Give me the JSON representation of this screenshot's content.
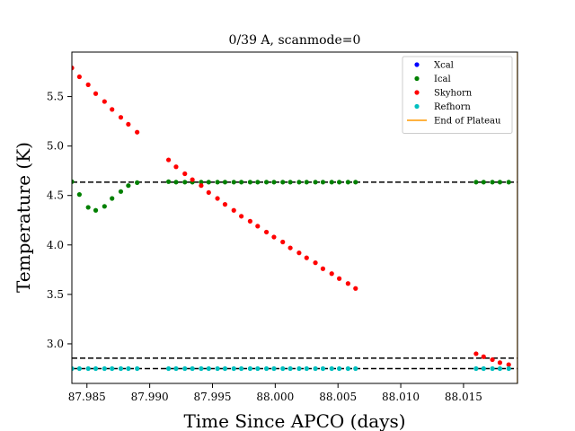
{
  "chart_data": {
    "type": "scatter",
    "title": "0/39 A, scanmode=0",
    "xlabel": "Time Since APCO (days)",
    "ylabel": "Temperature (K)",
    "xlim": [
      87.9838,
      88.0193
    ],
    "ylim": [
      2.6,
      5.95
    ],
    "x_ticks": [
      87.985,
      87.99,
      87.995,
      88.0,
      88.005,
      88.01,
      88.015
    ],
    "x_tick_labels": [
      "87.985",
      "87.990",
      "87.995",
      "88.000",
      "88.005",
      "88.010",
      "88.015"
    ],
    "y_ticks": [
      3.0,
      3.5,
      4.0,
      4.5,
      5.0,
      5.5
    ],
    "y_tick_labels": [
      "3.0",
      "3.5",
      "4.0",
      "4.5",
      "5.0",
      "5.5"
    ],
    "legend_position": "top-right",
    "reference_lines": [
      {
        "type": "hline",
        "y": 4.635,
        "style": "dashed",
        "color": "#000000"
      },
      {
        "type": "hline",
        "y": 2.855,
        "style": "dashed",
        "color": "#000000"
      },
      {
        "type": "hline",
        "y": 2.75,
        "style": "dashed",
        "color": "#000000"
      },
      {
        "type": "vline",
        "x": 88.0193,
        "style": "solid",
        "color": "#ff9900",
        "name": "End of Plateau"
      }
    ],
    "series": [
      {
        "name": "Xcal",
        "color": "#0000ff",
        "points": []
      },
      {
        "name": "Ical",
        "color": "#008000",
        "points": [
          [
            87.9838,
            4.64
          ],
          [
            87.9844,
            4.51
          ],
          [
            87.9851,
            4.38
          ],
          [
            87.9857,
            4.35
          ],
          [
            87.9864,
            4.39
          ],
          [
            87.987,
            4.47
          ],
          [
            87.9877,
            4.54
          ],
          [
            87.9883,
            4.6
          ],
          [
            87.989,
            4.63
          ],
          [
            87.9915,
            4.64
          ],
          [
            87.9921,
            4.635
          ],
          [
            87.9928,
            4.635
          ],
          [
            87.9934,
            4.635
          ],
          [
            87.9941,
            4.635
          ],
          [
            87.9947,
            4.635
          ],
          [
            87.9954,
            4.635
          ],
          [
            87.996,
            4.635
          ],
          [
            87.9967,
            4.635
          ],
          [
            87.9973,
            4.635
          ],
          [
            87.998,
            4.635
          ],
          [
            87.9986,
            4.635
          ],
          [
            87.9993,
            4.635
          ],
          [
            87.9999,
            4.635
          ],
          [
            88.0006,
            4.635
          ],
          [
            88.0012,
            4.635
          ],
          [
            88.0019,
            4.635
          ],
          [
            88.0025,
            4.635
          ],
          [
            88.0032,
            4.635
          ],
          [
            88.0038,
            4.635
          ],
          [
            88.0045,
            4.635
          ],
          [
            88.0051,
            4.635
          ],
          [
            88.0058,
            4.635
          ],
          [
            88.0064,
            4.635
          ],
          [
            88.016,
            4.635
          ],
          [
            88.0166,
            4.635
          ],
          [
            88.0173,
            4.635
          ],
          [
            88.0179,
            4.635
          ],
          [
            88.0186,
            4.635
          ]
        ]
      },
      {
        "name": "Skyhorn",
        "color": "#ff0000",
        "points": [
          [
            87.9838,
            5.79
          ],
          [
            87.9844,
            5.7
          ],
          [
            87.9851,
            5.62
          ],
          [
            87.9857,
            5.53
          ],
          [
            87.9864,
            5.45
          ],
          [
            87.987,
            5.37
          ],
          [
            87.9877,
            5.29
          ],
          [
            87.9883,
            5.22
          ],
          [
            87.989,
            5.14
          ],
          [
            87.9915,
            4.86
          ],
          [
            87.9921,
            4.79
          ],
          [
            87.9928,
            4.72
          ],
          [
            87.9934,
            4.66
          ],
          [
            87.9941,
            4.6
          ],
          [
            87.9947,
            4.53
          ],
          [
            87.9954,
            4.47
          ],
          [
            87.996,
            4.41
          ],
          [
            87.9967,
            4.35
          ],
          [
            87.9973,
            4.29
          ],
          [
            87.998,
            4.24
          ],
          [
            87.9986,
            4.19
          ],
          [
            87.9993,
            4.13
          ],
          [
            87.9999,
            4.08
          ],
          [
            88.0006,
            4.03
          ],
          [
            88.0012,
            3.97
          ],
          [
            88.0019,
            3.92
          ],
          [
            88.0025,
            3.87
          ],
          [
            88.0032,
            3.82
          ],
          [
            88.0038,
            3.76
          ],
          [
            88.0045,
            3.71
          ],
          [
            88.0051,
            3.66
          ],
          [
            88.0058,
            3.61
          ],
          [
            88.0064,
            3.56
          ],
          [
            88.016,
            2.9
          ],
          [
            88.0166,
            2.87
          ],
          [
            88.0173,
            2.84
          ],
          [
            88.0179,
            2.81
          ],
          [
            88.0186,
            2.79
          ]
        ]
      },
      {
        "name": "Refhorn",
        "color": "#00bfbf",
        "points": [
          [
            87.9838,
            2.75
          ],
          [
            87.9844,
            2.75
          ],
          [
            87.9851,
            2.75
          ],
          [
            87.9857,
            2.75
          ],
          [
            87.9864,
            2.75
          ],
          [
            87.987,
            2.75
          ],
          [
            87.9877,
            2.75
          ],
          [
            87.9883,
            2.75
          ],
          [
            87.989,
            2.75
          ],
          [
            87.9915,
            2.75
          ],
          [
            87.9921,
            2.75
          ],
          [
            87.9928,
            2.75
          ],
          [
            87.9934,
            2.75
          ],
          [
            87.9941,
            2.75
          ],
          [
            87.9947,
            2.75
          ],
          [
            87.9954,
            2.75
          ],
          [
            87.996,
            2.75
          ],
          [
            87.9967,
            2.75
          ],
          [
            87.9973,
            2.75
          ],
          [
            87.998,
            2.75
          ],
          [
            87.9986,
            2.75
          ],
          [
            87.9993,
            2.75
          ],
          [
            87.9999,
            2.75
          ],
          [
            88.0006,
            2.75
          ],
          [
            88.0012,
            2.75
          ],
          [
            88.0019,
            2.75
          ],
          [
            88.0025,
            2.75
          ],
          [
            88.0032,
            2.75
          ],
          [
            88.0038,
            2.75
          ],
          [
            88.0045,
            2.75
          ],
          [
            88.0051,
            2.75
          ],
          [
            88.0058,
            2.75
          ],
          [
            88.0064,
            2.75
          ],
          [
            88.016,
            2.75
          ],
          [
            88.0166,
            2.75
          ],
          [
            88.0173,
            2.75
          ],
          [
            88.0179,
            2.75
          ],
          [
            88.0186,
            2.75
          ]
        ]
      }
    ],
    "legend": [
      {
        "label": "Xcal",
        "kind": "marker",
        "color": "#0000ff"
      },
      {
        "label": "Ical",
        "kind": "marker",
        "color": "#008000"
      },
      {
        "label": "Skyhorn",
        "kind": "marker",
        "color": "#ff0000"
      },
      {
        "label": "Refhorn",
        "kind": "marker",
        "color": "#00bfbf"
      },
      {
        "label": "End of Plateau",
        "kind": "line",
        "color": "#ff9900"
      }
    ]
  }
}
